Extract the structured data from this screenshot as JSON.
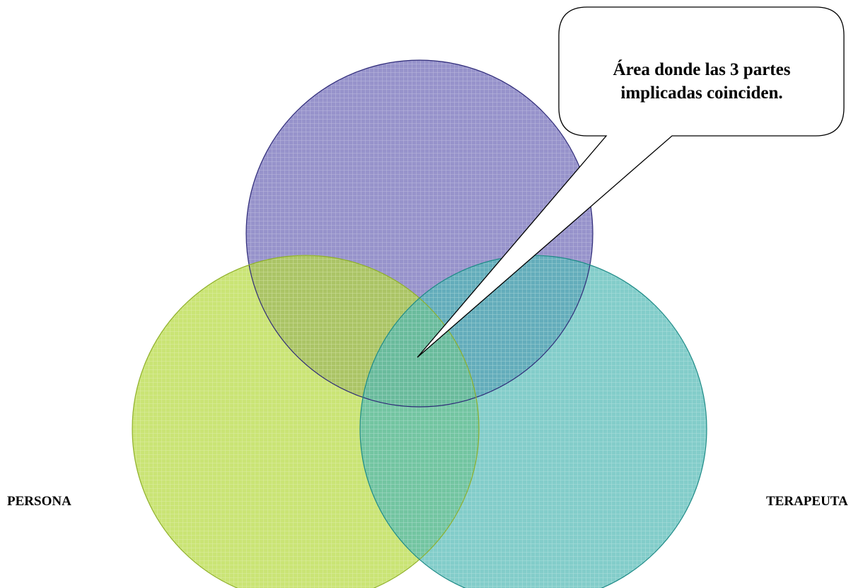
{
  "diagram": {
    "type": "venn",
    "callout": {
      "lines": [
        "Área donde las 3 partes",
        "implicadas coinciden."
      ]
    },
    "labels": {
      "persona": "PERSONA",
      "terapeuta": "TERAPEUTA"
    },
    "colors": {
      "top_circle": "#6b65b5",
      "left_circle": "#b3d93a",
      "right_circle": "#4fb8b4",
      "top_stroke": "#2e2a78",
      "left_stroke": "#8fb02a",
      "right_stroke": "#1d8a86"
    }
  }
}
